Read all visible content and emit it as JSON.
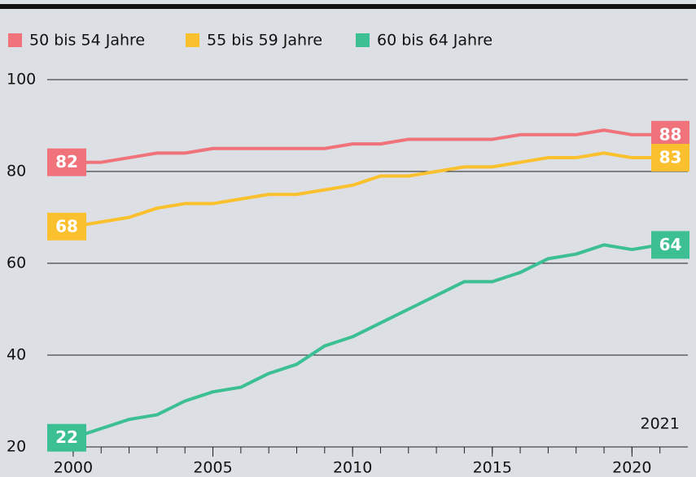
{
  "chart_data": {
    "type": "line",
    "x": [
      2000,
      2001,
      2002,
      2003,
      2004,
      2005,
      2006,
      2007,
      2008,
      2009,
      2010,
      2011,
      2012,
      2013,
      2014,
      2015,
      2016,
      2017,
      2018,
      2019,
      2020,
      2021
    ],
    "series": [
      {
        "name": "50 bis 54 Jahre",
        "color": "#f0727a",
        "values": [
          82,
          82,
          83,
          84,
          84,
          85,
          85,
          85,
          85,
          85,
          86,
          86,
          87,
          87,
          87,
          87,
          88,
          88,
          88,
          89,
          88,
          88
        ]
      },
      {
        "name": "55 bis 59 Jahre",
        "color": "#fbc02d",
        "values": [
          68,
          69,
          70,
          72,
          73,
          73,
          74,
          75,
          75,
          76,
          77,
          79,
          79,
          80,
          81,
          81,
          82,
          83,
          83,
          84,
          83,
          83
        ]
      },
      {
        "name": "60 bis 64 Jahre",
        "color": "#3dbf94",
        "values": [
          22,
          24,
          26,
          27,
          30,
          32,
          33,
          36,
          38,
          42,
          44,
          47,
          50,
          53,
          56,
          56,
          58,
          61,
          62,
          64,
          63,
          64
        ]
      }
    ],
    "annotation": "2021",
    "xlim": [
      1999.07,
      2022
    ],
    "xticks": [
      2000,
      2005,
      2010,
      2015,
      2020
    ],
    "ylim": [
      20,
      100
    ],
    "yticks": [
      20,
      40,
      60,
      80,
      100
    ],
    "grid": true
  }
}
